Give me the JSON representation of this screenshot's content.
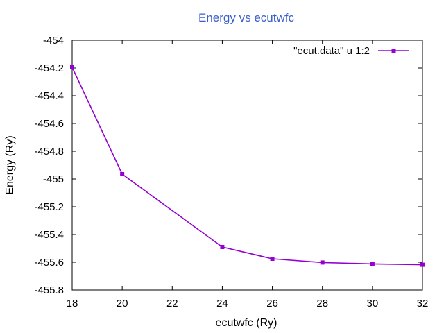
{
  "chart_data": {
    "type": "line",
    "title": "Energy vs ecutwfc",
    "xlabel": "ecutwfc (Ry)",
    "ylabel": "Energy (Ry)",
    "xlim": [
      18,
      32
    ],
    "ylim": [
      -455.8,
      -454
    ],
    "xticks": [
      18,
      20,
      22,
      24,
      26,
      28,
      30,
      32
    ],
    "yticks": [
      -454,
      -454.2,
      -454.4,
      -454.6,
      -454.8,
      -455,
      -455.2,
      -455.4,
      -455.6,
      -455.8
    ],
    "xtick_labels": [
      "18",
      "20",
      "22",
      "24",
      "26",
      "28",
      "30",
      "32"
    ],
    "ytick_labels": [
      "-454",
      "-454.2",
      "-454.4",
      "-454.6",
      "-454.8",
      "-455",
      "-455.2",
      "-455.4",
      "-455.6",
      "-455.8"
    ],
    "grid": false,
    "legend_position": "top-right",
    "series": [
      {
        "name": "\"ecut.data\" u 1:2",
        "color": "#9400d3",
        "marker": "filled-square",
        "x": [
          18,
          20,
          24,
          26,
          28,
          30,
          32
        ],
        "y": [
          -454.195,
          -454.965,
          -455.49,
          -455.575,
          -455.602,
          -455.612,
          -455.618
        ]
      }
    ],
    "colors": {
      "title": "#3a5fcd",
      "axis": "#000000"
    }
  }
}
